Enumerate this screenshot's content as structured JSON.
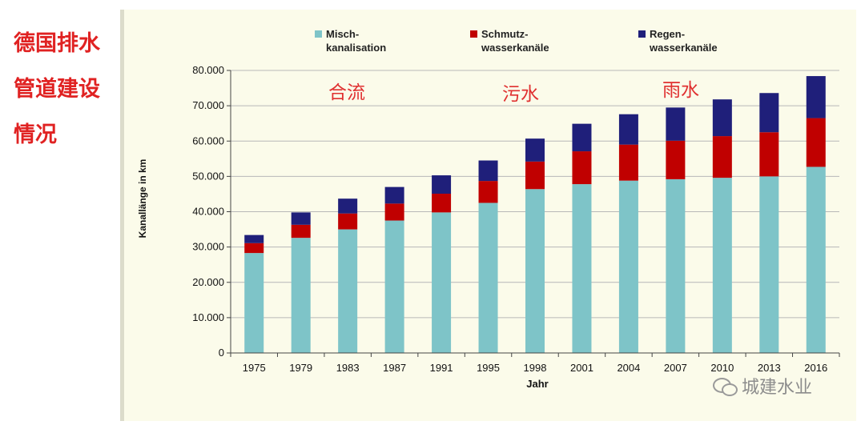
{
  "side_title": [
    "德国排水",
    "管道建设",
    "情况"
  ],
  "watermark": "城建水业",
  "colors": {
    "misch": "#7ec4c8",
    "schmutz": "#c00000",
    "regen": "#1f1f7a",
    "annotation": "#e03030",
    "title": "#e02222"
  },
  "chart_data": {
    "type": "bar",
    "stacked": true,
    "categories": [
      "1975",
      "1979",
      "1983",
      "1987",
      "1991",
      "1995",
      "1998",
      "2001",
      "2004",
      "2007",
      "2010",
      "2013",
      "2016"
    ],
    "series": [
      {
        "key": "misch",
        "name": "Misch-\nkanalisation",
        "values": [
          28300,
          32600,
          35000,
          37500,
          39800,
          42500,
          46400,
          47800,
          48800,
          49200,
          49600,
          50000,
          52700
        ]
      },
      {
        "key": "schmutz",
        "name": "Schmutz-\nwasserkanäle",
        "values": [
          2800,
          3700,
          4500,
          4800,
          5300,
          6200,
          7800,
          9300,
          10200,
          10900,
          11800,
          12500,
          13800
        ]
      },
      {
        "key": "regen",
        "name": "Regen-\nwasserkanäle",
        "values": [
          2300,
          3500,
          4200,
          4700,
          5200,
          5800,
          6500,
          7800,
          8600,
          9400,
          10400,
          11100,
          11900
        ]
      }
    ],
    "xlabel": "Jahr",
    "ylabel": "Kanallänge in km",
    "ylim": [
      0,
      80000
    ],
    "yticks": [
      0,
      10000,
      20000,
      30000,
      40000,
      50000,
      60000,
      70000,
      80000
    ],
    "ytick_labels": [
      "0",
      "10.000",
      "20.000",
      "30.000",
      "40.000",
      "50.000",
      "60.000",
      "70.000",
      "80.000"
    ],
    "grid": true,
    "legend_position": "top",
    "annotations": [
      "合流",
      "污水",
      "雨水"
    ]
  }
}
